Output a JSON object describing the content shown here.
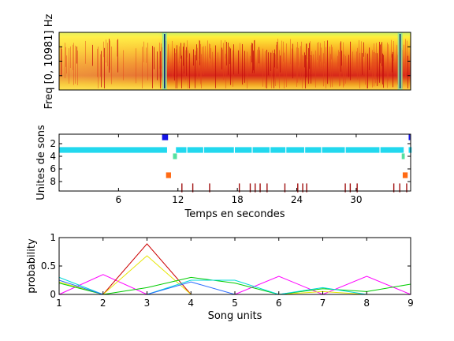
{
  "chart_data": [
    {
      "type": "heatmap",
      "title": "",
      "xlabel": "",
      "ylabel": "Freq [0, 10981] Hz",
      "colormap": "jet",
      "dominant_colors": [
        "#f5d020",
        "#e8401c",
        "#c81010",
        "#ffff66",
        "#9be88a"
      ],
      "events": [
        {
          "name": "boundary-1",
          "approx_frac": 0.3
        },
        {
          "name": "boundary-2",
          "approx_frac": 0.97
        }
      ]
    },
    {
      "type": "scatter",
      "title": "",
      "xlabel": "Temps en secondes",
      "ylabel": "Unites de sons",
      "xlim": [
        0,
        35.5
      ],
      "ylim": [
        0.5,
        9.5
      ],
      "y_reversed": true,
      "xticks": [
        6,
        12,
        18,
        24,
        30
      ],
      "yticks": [
        2,
        4,
        6,
        8
      ],
      "unit_colors": {
        "1": "#1414e6",
        "3": "#22d8ee",
        "4": "#55e0a0",
        "7": "#ff6a14",
        "9": "#a01010"
      },
      "segments": [
        {
          "unit": 1,
          "start": 10.4,
          "end": 11.0
        },
        {
          "unit": 1,
          "start": 35.3,
          "end": 35.45
        },
        {
          "unit": 3,
          "start": 0.0,
          "end": 10.9
        },
        {
          "unit": 3,
          "start": 11.8,
          "end": 34.8
        },
        {
          "unit": 3,
          "start": 35.3,
          "end": 35.6
        },
        {
          "unit": 4,
          "start": 11.5,
          "end": 11.9
        },
        {
          "unit": 4,
          "start": 34.6,
          "end": 34.9
        },
        {
          "unit": 7,
          "start": 10.8,
          "end": 11.3
        },
        {
          "unit": 7,
          "start": 34.7,
          "end": 35.2
        }
      ],
      "unit3_gaps": [
        12.9,
        14.6,
        17.7,
        19.5,
        21.3,
        22.9,
        24.8,
        26.5,
        28.9,
        32.4
      ],
      "unit9_ticks": [
        12.4,
        13.5,
        15.2,
        18.2,
        19.3,
        19.8,
        20.3,
        21.0,
        22.8,
        24.1,
        24.6,
        25.0,
        28.9,
        29.4,
        30.1,
        33.8,
        34.4,
        35.1
      ]
    },
    {
      "type": "line",
      "title": "",
      "xlabel": "Song units",
      "ylabel": "probability",
      "xlim": [
        1,
        9
      ],
      "ylim": [
        0,
        1
      ],
      "xticks": [
        1,
        2,
        3,
        4,
        5,
        6,
        7,
        8,
        9
      ],
      "yticks": [
        0,
        0.5,
        1
      ],
      "x": [
        1,
        2,
        3,
        4,
        5,
        6,
        7,
        8,
        9
      ],
      "series": [
        {
          "color": "#ff00ff",
          "values": [
            0.0,
            0.35,
            0.0,
            0.0,
            0.0,
            0.32,
            0.0,
            0.32,
            0.0
          ]
        },
        {
          "color": "#cc0000",
          "values": [
            0.0,
            0.0,
            0.89,
            0.0,
            0.0,
            0.0,
            0.0,
            0.0,
            0.0
          ]
        },
        {
          "color": "#e6e600",
          "values": [
            0.22,
            0.0,
            0.68,
            0.0,
            0.0,
            0.0,
            0.05,
            0.0,
            0.0
          ]
        },
        {
          "color": "#00cc00",
          "values": [
            0.2,
            0.0,
            0.12,
            0.3,
            0.2,
            0.0,
            0.1,
            0.05,
            0.18
          ]
        },
        {
          "color": "#00d8d8",
          "values": [
            0.3,
            0.0,
            0.0,
            0.25,
            0.25,
            0.0,
            0.12,
            0.0,
            0.0
          ]
        },
        {
          "color": "#2a6bff",
          "values": [
            0.25,
            0.0,
            0.0,
            0.22,
            0.0,
            0.0,
            0.0,
            0.0,
            0.0
          ]
        }
      ]
    }
  ]
}
